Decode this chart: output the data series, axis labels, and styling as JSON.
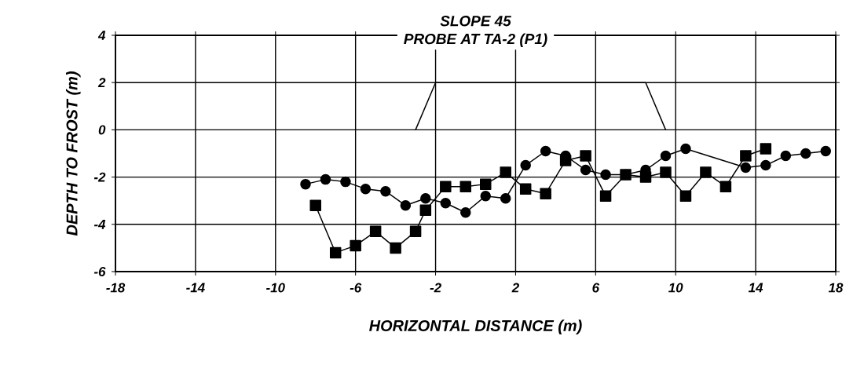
{
  "chart_data": {
    "type": "line",
    "title": "SLOPE 45",
    "subtitle": "PROBE AT TA-2 (P1)",
    "xlabel": "HORIZONTAL DISTANCE (m)",
    "ylabel": "DEPTH TO FROST (m)",
    "xlim": [
      -18,
      18
    ],
    "ylim": [
      -6,
      4
    ],
    "xticks": [
      -18,
      -14,
      -10,
      -6,
      -2,
      2,
      6,
      10,
      14,
      18
    ],
    "yticks": [
      -6,
      -4,
      -2,
      0,
      2,
      4
    ],
    "grid": true,
    "series": [
      {
        "color": "#000000",
        "marker": "circle",
        "x": [
          -8.5,
          -7.5,
          -6.5,
          -5.5,
          -4.5,
          -3.5,
          -2.5,
          -1.5,
          -0.5,
          0.5,
          1.5,
          2.5,
          3.5,
          4.5,
          5.5,
          6.5,
          7.5,
          8.5,
          9.5,
          10.5,
          13.5,
          14.5,
          15.5,
          16.5,
          17.5
        ],
        "values": [
          -2.3,
          -2.1,
          -2.2,
          -2.5,
          -2.6,
          -3.2,
          -2.9,
          -3.1,
          -3.5,
          -2.8,
          -2.9,
          -1.5,
          -0.9,
          -1.1,
          -1.7,
          -1.9,
          -1.9,
          -1.7,
          -1.1,
          -0.8,
          -1.6,
          -1.5,
          -1.1,
          -1.0,
          -0.9
        ]
      },
      {
        "color": "#000000",
        "marker": "square",
        "x": [
          -8,
          -7,
          -6,
          -5,
          -4,
          -3,
          -2.5,
          -1.5,
          -0.5,
          0.5,
          1.5,
          2.5,
          3.5,
          4.5,
          5.5,
          6.5,
          7.5,
          8.5,
          9.5,
          10.5,
          11.5,
          12.5,
          13.5,
          14.5
        ],
        "values": [
          -3.2,
          -5.2,
          -4.9,
          -4.3,
          -5.0,
          -4.3,
          -3.4,
          -2.4,
          -2.4,
          -2.3,
          -1.8,
          -2.5,
          -2.7,
          -1.3,
          -1.1,
          -2.8,
          -1.9,
          -2.0,
          -1.8,
          -2.8,
          -1.8,
          -2.4,
          -1.1,
          -0.8
        ]
      },
      {
        "color": "#000000",
        "marker": "none",
        "x": [
          -3,
          -2,
          8.5,
          9.5
        ],
        "values": [
          0,
          2,
          2,
          0
        ]
      }
    ]
  }
}
